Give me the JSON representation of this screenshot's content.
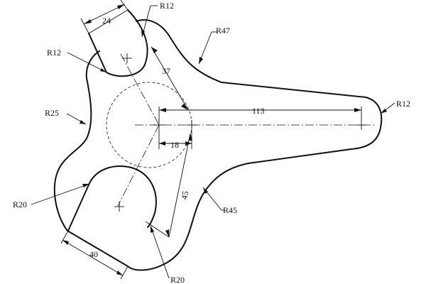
{
  "labels": {
    "r12_top": "R12",
    "r47": "R47",
    "r12_left": "R12",
    "r25": "R25",
    "r20_left": "R20",
    "r20_bottom": "R20",
    "r45": "R45",
    "r12_right": "R12",
    "dim_24": "24",
    "dim_37": "37",
    "dim_113": "113",
    "dim_18": "18",
    "dim_45": "45",
    "dim_40": "40"
  },
  "colors": {
    "line": "#111111",
    "background": "#ffffff"
  }
}
